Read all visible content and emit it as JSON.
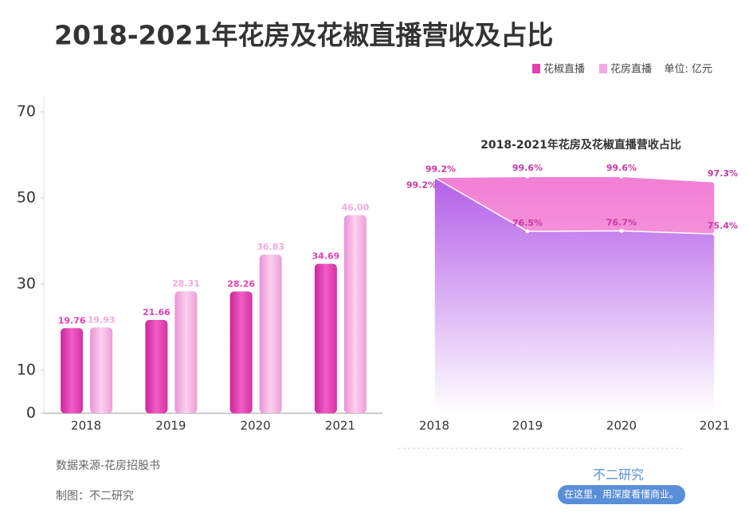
{
  "title": "2018-2021年花房及花椒直播营收及占比",
  "unit": "单位: 亿元",
  "chart_data": [
    {
      "type": "bar",
      "categories": [
        "2018",
        "2019",
        "2020",
        "2021"
      ],
      "series": [
        {
          "name": "花椒直播",
          "color": "#e43fb3",
          "values": [
            19.76,
            21.66,
            28.26,
            34.69
          ],
          "value_labels": [
            "19.76",
            "21.66",
            "28.26",
            "34.69"
          ]
        },
        {
          "name": "花房直播",
          "color": "#f4a9df",
          "values": [
            19.93,
            28.31,
            36.83,
            46
          ],
          "value_labels": [
            "19.93",
            "28.31",
            "36.83",
            "46.00"
          ]
        }
      ],
      "ylim": [
        0,
        70
      ],
      "yticks": [
        0,
        10,
        30,
        50,
        70
      ]
    },
    {
      "type": "area",
      "title": "2018-2021年花房及花椒直播营收占比",
      "categories": [
        "2018",
        "2019",
        "2020",
        "2021"
      ],
      "series": [
        {
          "color": "#f290d9",
          "values": [
            99.2,
            99.6,
            99.6,
            97.3
          ],
          "value_labels": [
            "99.2%",
            "99.6%",
            "99.6%",
            "97.3%"
          ]
        },
        {
          "color": "#b462e6",
          "values": [
            99.2,
            76.5,
            76.7,
            75.4
          ],
          "value_labels": [
            "99.2%",
            "76.5%",
            "76.7%",
            "75.4%"
          ]
        }
      ]
    }
  ],
  "source": "数据来源-花房招股书",
  "credit": "制图：不二研究",
  "logo": "不二研究",
  "slogan": "在这里，用深度看懂商业。"
}
